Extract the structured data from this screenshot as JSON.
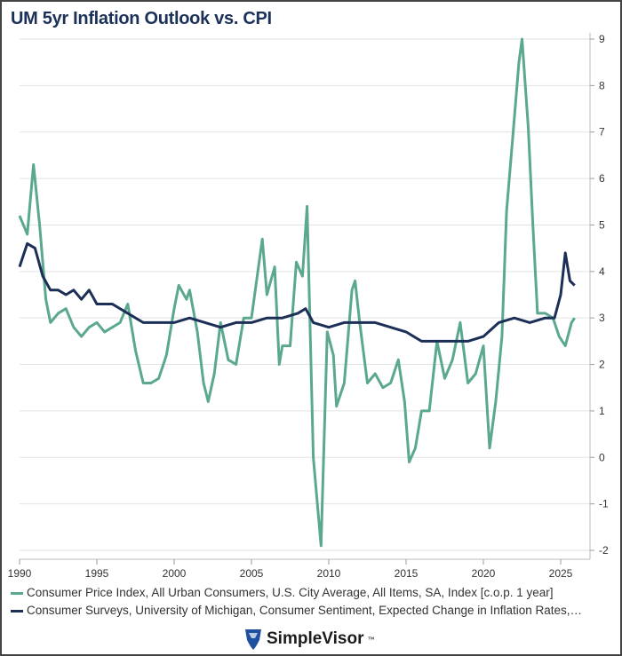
{
  "chart_data": {
    "type": "line",
    "title": "UM 5yr Inflation Outlook vs. CPI",
    "xlim": [
      1990,
      2026.5
    ],
    "ylim": [
      -2,
      9
    ],
    "x_ticks": [
      "1990",
      "1995",
      "2000",
      "2005",
      "2010",
      "2015",
      "2020",
      "2025"
    ],
    "y_ticks": [
      "9",
      "8",
      "7",
      "6",
      "5",
      "4",
      "3",
      "2",
      "1",
      "0",
      "-1",
      "-2"
    ],
    "y_axis_side": "right",
    "grid": "horizontal",
    "legend_placement": "bottom",
    "series": [
      {
        "name": "Consumer Price Index, All Urban Consumers, U.S. City Average, All Items, SA, Index [c.o.p. 1 year]",
        "color": "#5aa890",
        "x": [
          1990.0,
          1990.5,
          1990.9,
          1991.3,
          1991.7,
          1992.0,
          1992.5,
          1993.0,
          1993.5,
          1994.0,
          1994.5,
          1995.0,
          1995.5,
          1996.0,
          1996.5,
          1997.0,
          1997.5,
          1998.0,
          1998.5,
          1999.0,
          1999.5,
          2000.0,
          2000.3,
          2000.8,
          2001.0,
          2001.5,
          2001.9,
          2002.2,
          2002.6,
          2003.0,
          2003.5,
          2004.0,
          2004.5,
          2005.0,
          2005.7,
          2006.0,
          2006.5,
          2006.8,
          2007.0,
          2007.5,
          2007.9,
          2008.3,
          2008.6,
          2009.0,
          2009.5,
          2009.9,
          2010.3,
          2010.5,
          2011.0,
          2011.5,
          2011.7,
          2012.0,
          2012.5,
          2013.0,
          2013.5,
          2014.0,
          2014.5,
          2014.9,
          2015.2,
          2015.6,
          2016.0,
          2016.5,
          2017.0,
          2017.5,
          2018.0,
          2018.5,
          2019.0,
          2019.5,
          2020.0,
          2020.4,
          2020.8,
          2021.2,
          2021.5,
          2021.9,
          2022.3,
          2022.5,
          2022.9,
          2023.2,
          2023.5,
          2024.0,
          2024.5,
          2024.9,
          2025.3,
          2025.7,
          2025.9
        ],
        "values": [
          5.2,
          4.8,
          6.3,
          5.0,
          3.4,
          2.9,
          3.1,
          3.2,
          2.8,
          2.6,
          2.8,
          2.9,
          2.7,
          2.8,
          2.9,
          3.3,
          2.3,
          1.6,
          1.6,
          1.7,
          2.2,
          3.2,
          3.7,
          3.4,
          3.6,
          2.7,
          1.6,
          1.2,
          1.8,
          2.9,
          2.1,
          2.0,
          3.0,
          3.0,
          4.7,
          3.5,
          4.1,
          2.0,
          2.4,
          2.4,
          4.2,
          3.9,
          5.4,
          0.0,
          -1.9,
          2.7,
          2.2,
          1.1,
          1.6,
          3.6,
          3.8,
          2.9,
          1.6,
          1.8,
          1.5,
          1.6,
          2.1,
          1.2,
          -0.1,
          0.2,
          1.0,
          1.0,
          2.5,
          1.7,
          2.1,
          2.9,
          1.6,
          1.8,
          2.4,
          0.2,
          1.2,
          2.6,
          5.3,
          6.9,
          8.5,
          9.0,
          7.1,
          5.0,
          3.1,
          3.1,
          3.0,
          2.6,
          2.4,
          2.9,
          3.0
        ]
      },
      {
        "name": "Consumer Surveys, University of Michigan, Consumer Sentiment, Expected Change in Inflation Rates,…",
        "color": "#1b2f57",
        "x": [
          1990.0,
          1990.5,
          1991.0,
          1991.5,
          1992.0,
          1992.5,
          1993.0,
          1993.5,
          1994.0,
          1994.5,
          1995.0,
          1996.0,
          1997.0,
          1998.0,
          1999.0,
          2000.0,
          2001.0,
          2002.0,
          2003.0,
          2004.0,
          2005.0,
          2006.0,
          2007.0,
          2008.0,
          2008.5,
          2009.0,
          2010.0,
          2011.0,
          2012.0,
          2013.0,
          2014.0,
          2015.0,
          2016.0,
          2017.0,
          2018.0,
          2019.0,
          2020.0,
          2021.0,
          2022.0,
          2023.0,
          2024.0,
          2024.6,
          2025.0,
          2025.3,
          2025.6,
          2025.9
        ],
        "values": [
          4.1,
          4.6,
          4.5,
          3.9,
          3.6,
          3.6,
          3.5,
          3.6,
          3.4,
          3.6,
          3.3,
          3.3,
          3.1,
          2.9,
          2.9,
          2.9,
          3.0,
          2.9,
          2.8,
          2.9,
          2.9,
          3.0,
          3.0,
          3.1,
          3.2,
          2.9,
          2.8,
          2.9,
          2.9,
          2.9,
          2.8,
          2.7,
          2.5,
          2.5,
          2.5,
          2.5,
          2.6,
          2.9,
          3.0,
          2.9,
          3.0,
          3.0,
          3.5,
          4.4,
          3.8,
          3.7
        ]
      }
    ]
  },
  "legend": {
    "cpi": "Consumer Price Index, All Urban Consumers, U.S. City Average, All Items, SA, Index [c.o.p. 1 year]",
    "um": "Consumer Surveys, University of Michigan, Consumer Sentiment, Expected Change in Inflation Rates,…"
  },
  "logo": {
    "text": "SimpleVisor",
    "tm": "™"
  }
}
